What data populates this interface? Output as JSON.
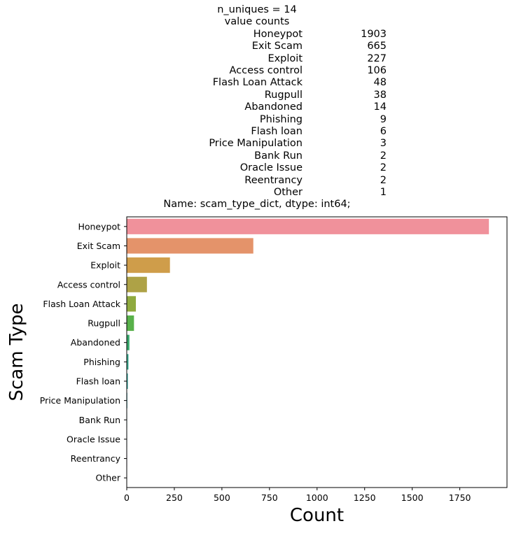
{
  "title": {
    "header_lines": [
      "n_uniques = 14",
      "value counts"
    ],
    "footer_line": "Name: scam_type_dict, dtype: int64;"
  },
  "chart_data": {
    "type": "bar",
    "orientation": "horizontal",
    "categories": [
      "Honeypot",
      "Exit Scam",
      "Exploit",
      "Access control",
      "Flash Loan Attack",
      "Rugpull",
      "Abandoned",
      "Phishing",
      "Flash loan",
      "Price Manipulation",
      "Bank Run",
      "Oracle Issue",
      "Reentrancy",
      "Other"
    ],
    "values": [
      1903,
      665,
      227,
      106,
      48,
      38,
      14,
      9,
      6,
      3,
      2,
      2,
      2,
      1
    ],
    "colors": [
      "#f0919b",
      "#e4936a",
      "#cf9d4a",
      "#aea246",
      "#8faa3e",
      "#58b14a",
      "#37a86b",
      "#36a78c",
      "#38a59c",
      "#39a3ac",
      "#3da0c5",
      "#8d9fe6",
      "#c58ee9",
      "#ec87ce"
    ],
    "xlabel": "Count",
    "ylabel": "Scam Type",
    "xlim": [
      0,
      1998
    ],
    "xticks": [
      0,
      250,
      500,
      750,
      1000,
      1250,
      1500,
      1750
    ],
    "grid": false,
    "legend": "none"
  }
}
